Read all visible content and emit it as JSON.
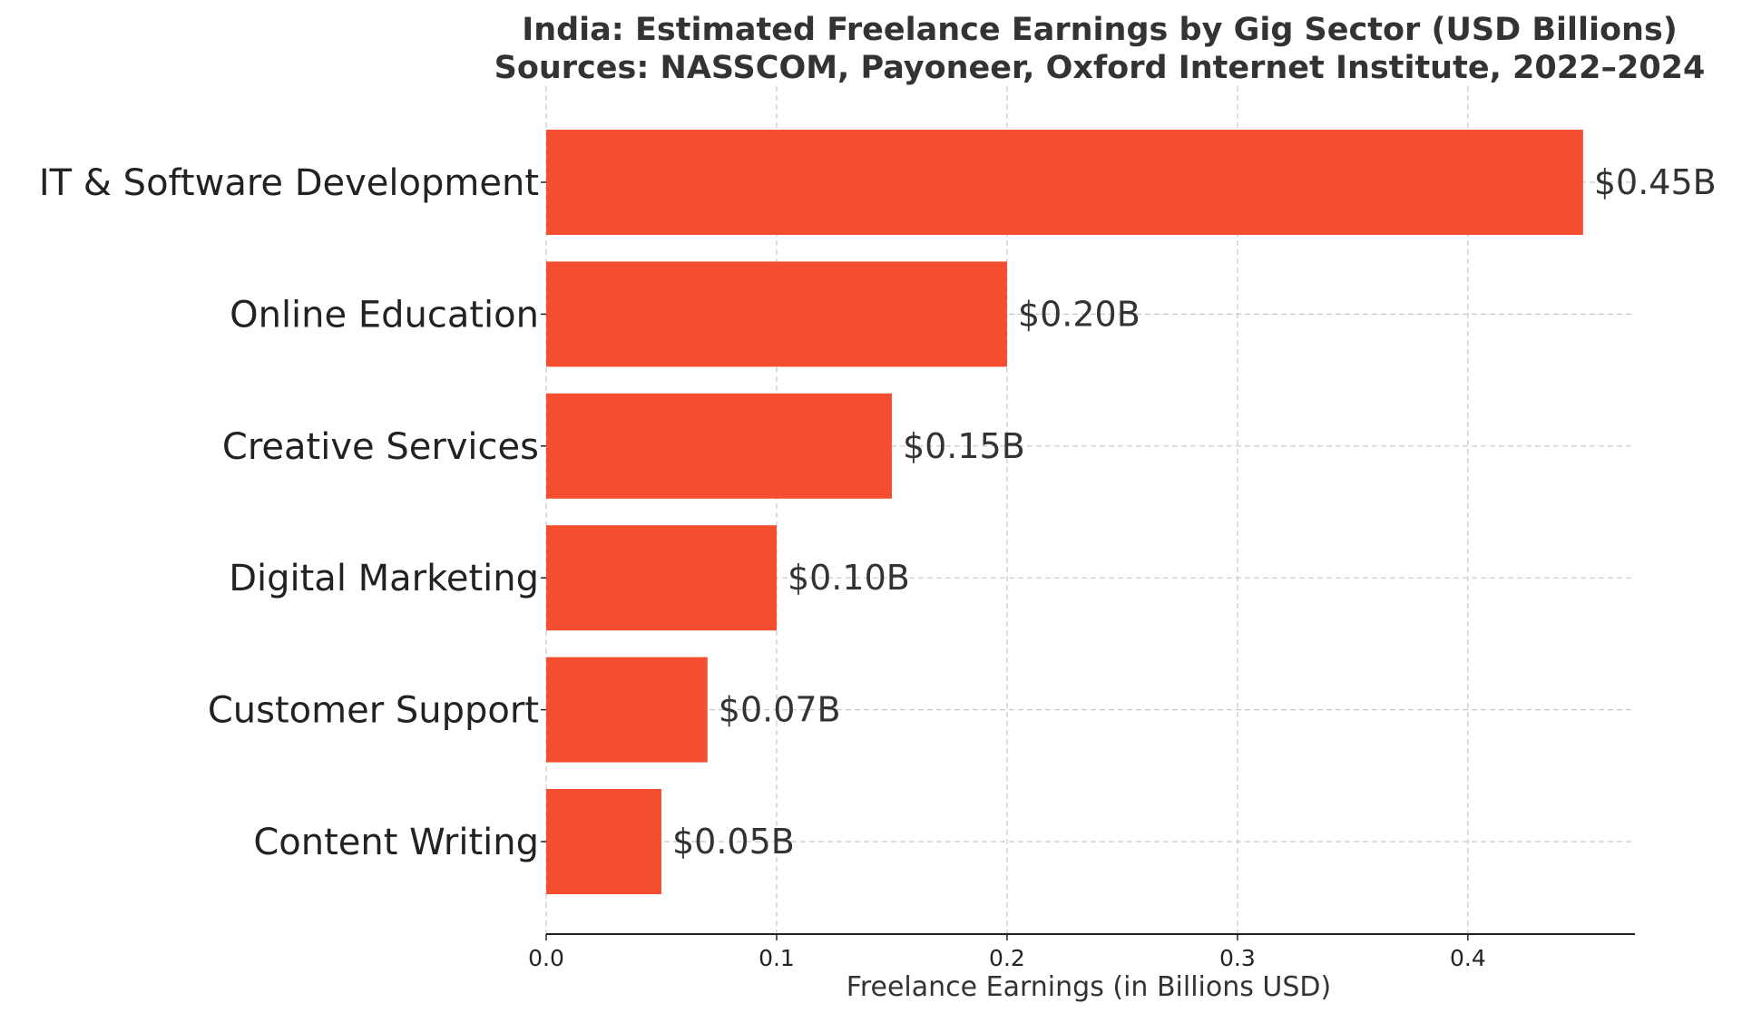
{
  "chart_data": {
    "type": "bar",
    "orientation": "horizontal",
    "title": "India: Estimated Freelance Earnings by Gig Sector (USD Billions)",
    "subtitle": "Sources: NASSCOM, Payoneer, Oxford Internet Institute, 2022–2024",
    "xlabel": "Freelance Earnings (in Billions USD)",
    "ylabel": "",
    "categories": [
      "IT & Software Development",
      "Online Education",
      "Creative Services",
      "Digital Marketing",
      "Customer Support",
      "Content Writing"
    ],
    "values": [
      0.45,
      0.2,
      0.15,
      0.1,
      0.07,
      0.05
    ],
    "value_labels": [
      "$0.45B",
      "$0.20B",
      "$0.15B",
      "$0.10B",
      "$0.07B",
      "$0.05B"
    ],
    "xlim": [
      0,
      0.4725
    ],
    "x_ticks": [
      0.0,
      0.1,
      0.2,
      0.3,
      0.4
    ],
    "x_tick_labels": [
      "0.0",
      "0.1",
      "0.2",
      "0.3",
      "0.4"
    ],
    "grid": true,
    "legend": "none",
    "bar_color": "#f44d2f"
  }
}
